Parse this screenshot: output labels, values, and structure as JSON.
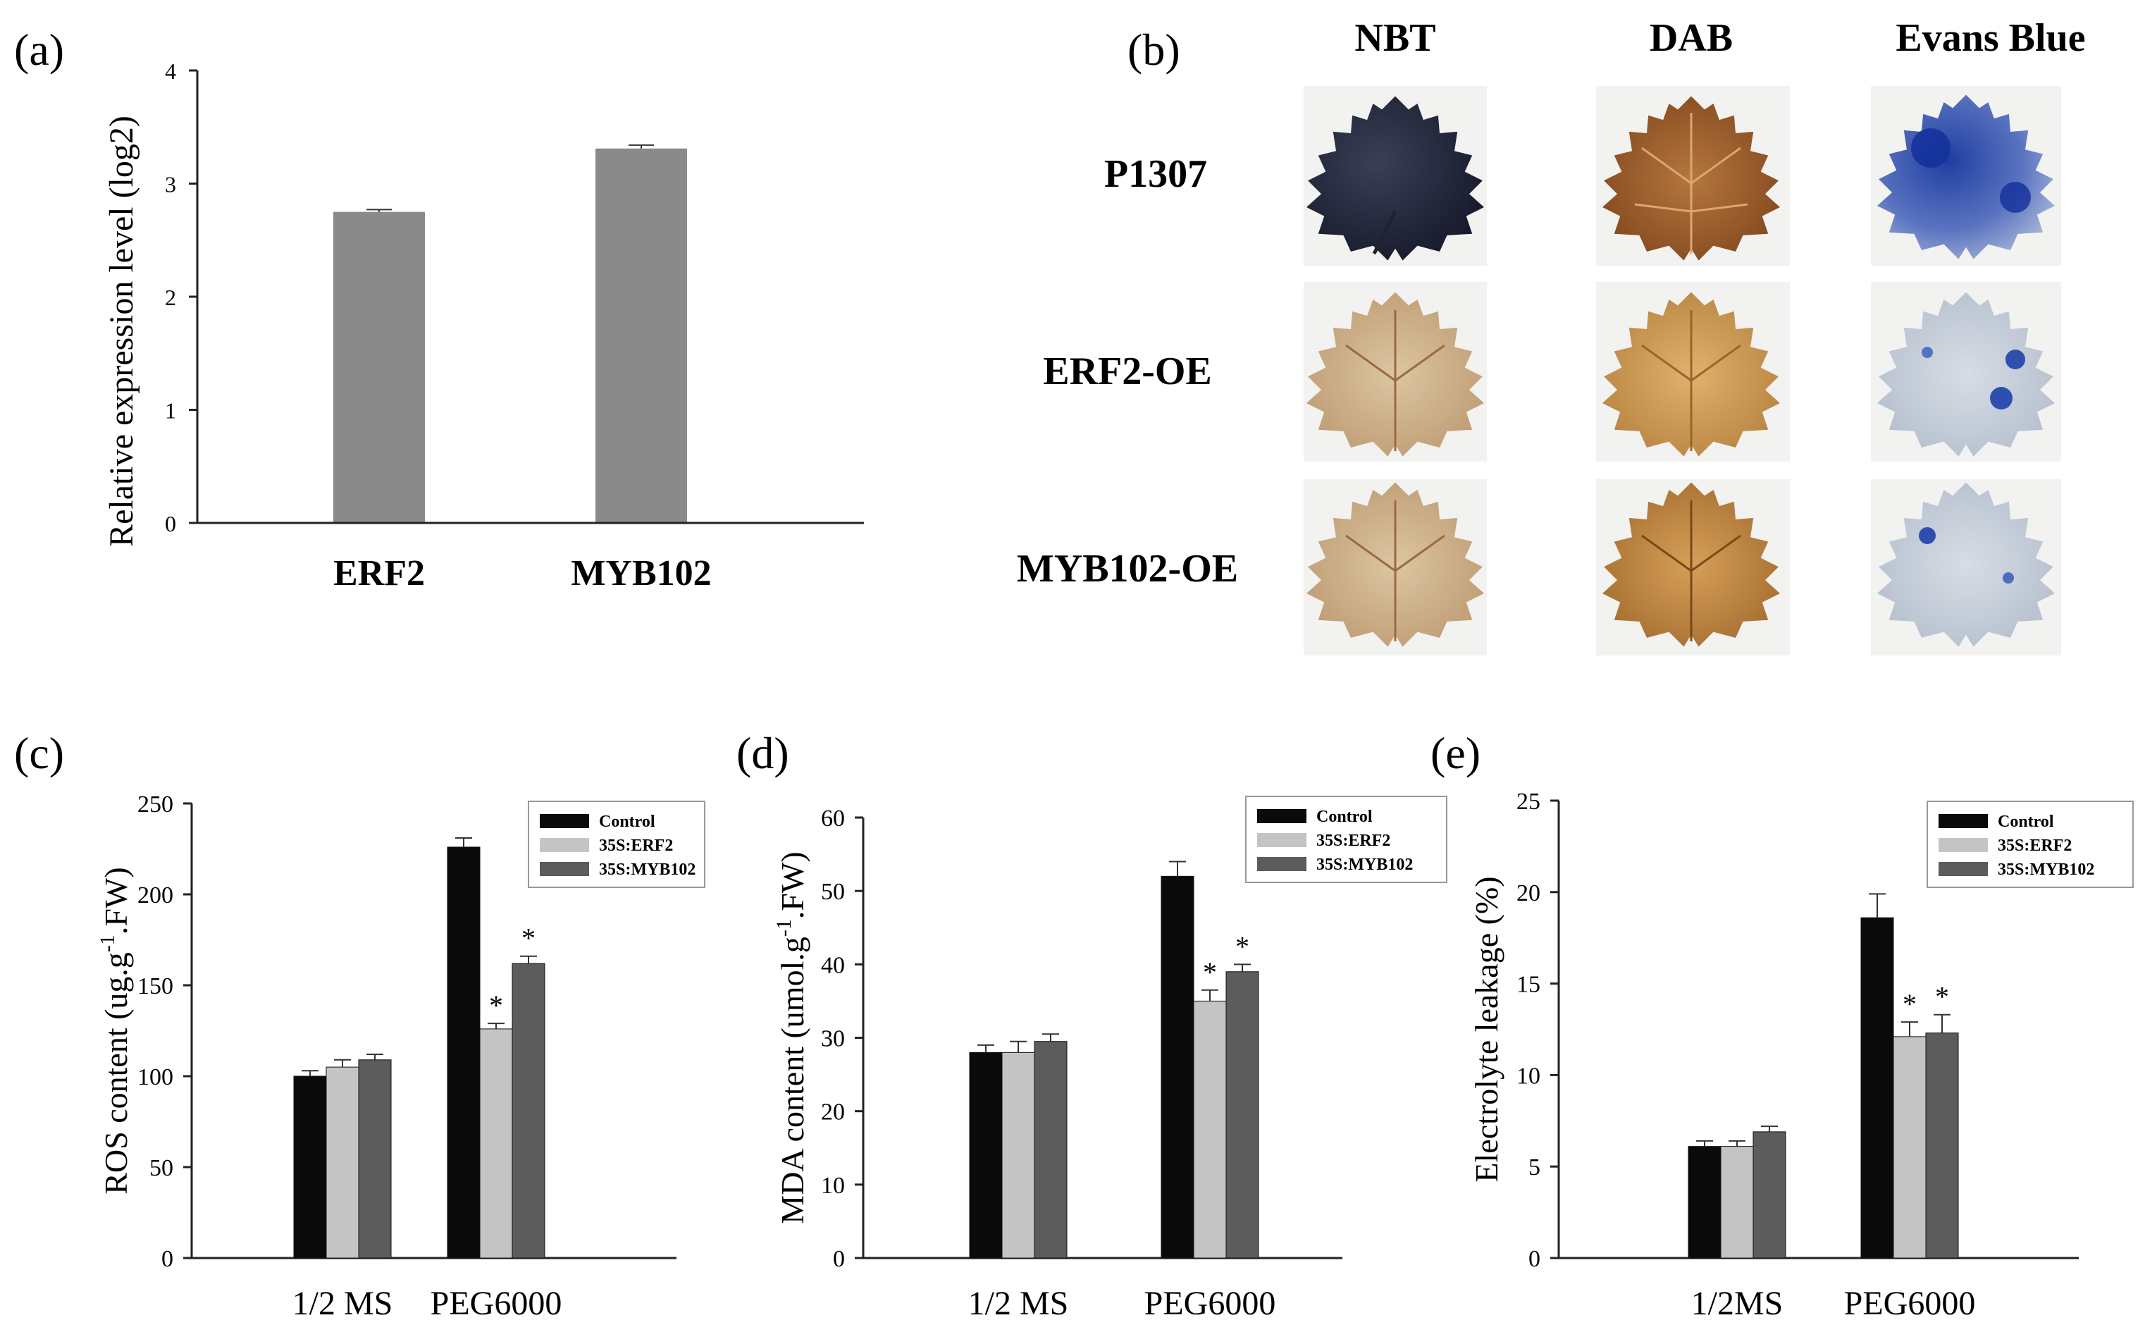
{
  "colors": {
    "control": "#0a0a0a",
    "erf2": "#c4c4c4",
    "myb102": "#5c5c5c",
    "panel_a_bar": "#8a8a8a",
    "axis": "#222222"
  },
  "panel_b": {
    "label": "(b)",
    "columns": [
      "NBT",
      "DAB",
      "Evans Blue"
    ],
    "rows": [
      "P1307",
      "ERF2-OE",
      "MYB102-OE"
    ],
    "leaf_descriptions": [
      [
        "dark blue leaf",
        "dark brown leaf",
        "blue spotted leaf"
      ],
      [
        "light tan leaf",
        "light brown leaf",
        "pale blue spots leaf"
      ],
      [
        "light tan leaf",
        "brown leaf",
        "pale blue spots leaf"
      ]
    ]
  },
  "chart_data": [
    {
      "panel": "(a)",
      "type": "bar",
      "categories": [
        "ERF2",
        "MYB102"
      ],
      "values": [
        2.75,
        3.31
      ],
      "errors": [
        0.02,
        0.03
      ],
      "ylabel": "Relative expression level (log2)",
      "ylim": [
        0,
        4
      ],
      "yticks": [
        "0",
        "1",
        "2",
        "3",
        "4"
      ]
    },
    {
      "panel": "(c)",
      "type": "bar",
      "categories": [
        "1/2 MS",
        "PEG6000"
      ],
      "series": [
        {
          "name": "Control",
          "values": [
            100,
            226
          ],
          "errors": [
            3,
            5
          ]
        },
        {
          "name": "35S:ERF2",
          "values": [
            105,
            126
          ],
          "errors": [
            4,
            3
          ]
        },
        {
          "name": "35S:MYB102",
          "values": [
            109,
            162
          ],
          "errors": [
            3,
            4
          ]
        }
      ],
      "significance": [
        [
          "",
          ""
        ],
        [
          "",
          "*"
        ],
        [
          "",
          "*"
        ]
      ],
      "ylabel_main": "ROS content (ug.g",
      "ylabel_sup": "-1",
      "ylabel_tail": ".FW)",
      "ylim": [
        0,
        250
      ],
      "yticks": [
        "0",
        "50",
        "100",
        "150",
        "200",
        "250"
      ],
      "legend": "top-right"
    },
    {
      "panel": "(d)",
      "type": "bar",
      "categories": [
        "1/2 MS",
        "PEG6000"
      ],
      "series": [
        {
          "name": "Control",
          "values": [
            28,
            52
          ],
          "errors": [
            1,
            2
          ]
        },
        {
          "name": "35S:ERF2",
          "values": [
            28,
            35
          ],
          "errors": [
            1.5,
            1.5
          ]
        },
        {
          "name": "35S:MYB102",
          "values": [
            29.5,
            39
          ],
          "errors": [
            1,
            1
          ]
        }
      ],
      "significance": [
        [
          "",
          ""
        ],
        [
          "",
          "*"
        ],
        [
          "",
          "*"
        ]
      ],
      "ylabel_main": "MDA content (umol.g",
      "ylabel_sup": "-1",
      "ylabel_tail": ".FW)",
      "ylim": [
        0,
        60
      ],
      "yticks": [
        "0",
        "10",
        "20",
        "30",
        "40",
        "50",
        "60"
      ],
      "legend": "top-right"
    },
    {
      "panel": "(e)",
      "type": "bar",
      "categories": [
        "1/2MS",
        "PEG6000"
      ],
      "series": [
        {
          "name": "Control",
          "values": [
            6.1,
            18.6
          ],
          "errors": [
            0.3,
            1.3
          ]
        },
        {
          "name": "35S:ERF2",
          "values": [
            6.1,
            12.1
          ],
          "errors": [
            0.3,
            0.8
          ]
        },
        {
          "name": "35S:MYB102",
          "values": [
            6.9,
            12.3
          ],
          "errors": [
            0.3,
            1.0
          ]
        }
      ],
      "significance": [
        [
          "",
          ""
        ],
        [
          "",
          "*"
        ],
        [
          "",
          "*"
        ]
      ],
      "ylabel_main": "Electrolyte leakage (%)",
      "ylabel_sup": "",
      "ylabel_tail": "",
      "ylim": [
        0,
        25
      ],
      "yticks": [
        "0",
        "5",
        "10",
        "15",
        "20",
        "25"
      ],
      "legend": "top-right"
    }
  ]
}
